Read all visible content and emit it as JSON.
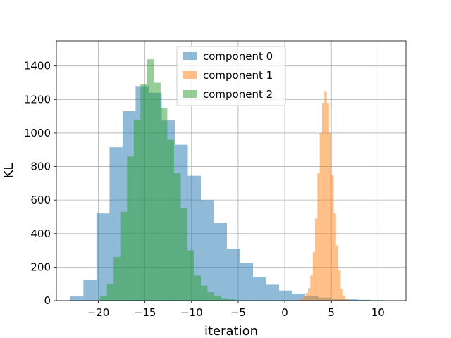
{
  "chart_data": {
    "type": "histogram",
    "title": "",
    "xlabel": "iteration",
    "ylabel": "KL",
    "xlim": [
      -24.5,
      13.0
    ],
    "ylim": [
      0,
      1550
    ],
    "x_ticks": [
      -20,
      -15,
      -10,
      -5,
      0,
      5,
      10
    ],
    "x_tick_labels": [
      "−20",
      "−15",
      "−10",
      "−5",
      "0",
      "5",
      "10"
    ],
    "y_ticks": [
      0,
      200,
      400,
      600,
      800,
      1000,
      1200,
      1400
    ],
    "y_tick_labels": [
      "0",
      "200",
      "400",
      "600",
      "800",
      "1000",
      "1200",
      "1400"
    ],
    "grid": true,
    "legend_position": "top-center",
    "series": [
      {
        "name": "component 0",
        "color": "#1f77b4",
        "alpha": 0.5,
        "bin_start": -23.0,
        "bin_width": 1.4,
        "counts": [
          25,
          125,
          520,
          915,
          1130,
          1280,
          1240,
          1075,
          930,
          745,
          600,
          465,
          310,
          225,
          140,
          95,
          60,
          42,
          28,
          18,
          12,
          8,
          5,
          3,
          2
        ]
      },
      {
        "name": "component 1",
        "color": "#ff7f0e",
        "alpha": 0.5,
        "bin_start": 1.5,
        "bin_width": 0.25,
        "counts": [
          5,
          12,
          25,
          45,
          75,
          150,
          290,
          490,
          760,
          1000,
          1180,
          1250,
          1180,
          1000,
          750,
          520,
          330,
          180,
          70,
          30,
          12,
          5
        ]
      },
      {
        "name": "component 2",
        "color": "#2ca02c",
        "alpha": 0.5,
        "bin_start": -19.8,
        "bin_width": 0.72,
        "counts": [
          30,
          100,
          260,
          530,
          860,
          1080,
          1290,
          1440,
          1300,
          1150,
          960,
          760,
          550,
          300,
          150,
          90,
          50,
          30,
          15,
          8
        ]
      }
    ]
  }
}
